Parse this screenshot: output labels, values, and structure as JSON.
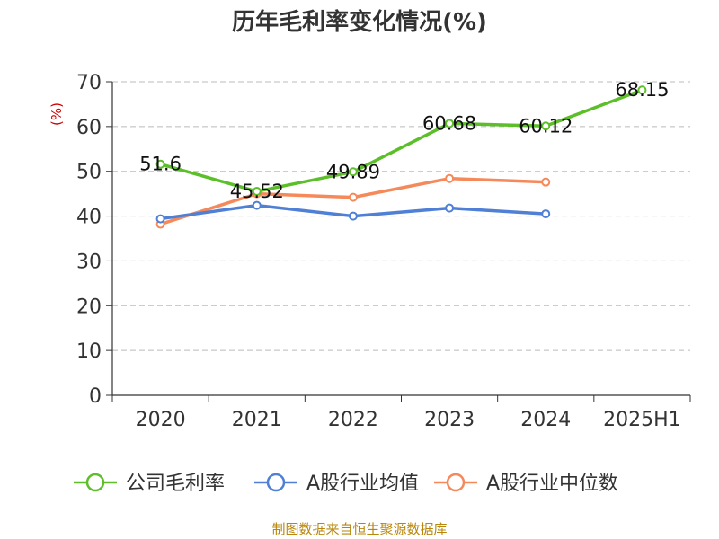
{
  "chart_data": {
    "type": "line",
    "title": "历年毛利率变化情况(%)",
    "ylabel": "(%)",
    "xlabel": "",
    "categories": [
      "2020",
      "2021",
      "2022",
      "2023",
      "2024",
      "2025H1"
    ],
    "ylim": [
      0,
      70
    ],
    "yticks": [
      0,
      10,
      20,
      30,
      40,
      50,
      60,
      70
    ],
    "grid": true,
    "legend_position": "bottom",
    "series": [
      {
        "name": "公司毛利率",
        "color": "#5cbf2a",
        "values": [
          51.6,
          45.52,
          49.89,
          60.68,
          60.12,
          68.15
        ],
        "labels": [
          "51.6",
          "45.52",
          "49.89",
          "60.68",
          "60.12",
          "68.15"
        ]
      },
      {
        "name": "A股行业均值",
        "color": "#4f80d6",
        "values": [
          39.4,
          42.4,
          40.0,
          41.8,
          40.5,
          null
        ]
      },
      {
        "name": "A股行业中位数",
        "color": "#f5895a",
        "values": [
          38.2,
          45.0,
          44.2,
          48.4,
          47.6,
          null
        ]
      }
    ],
    "source": "制图数据来自恒生聚源数据库"
  }
}
